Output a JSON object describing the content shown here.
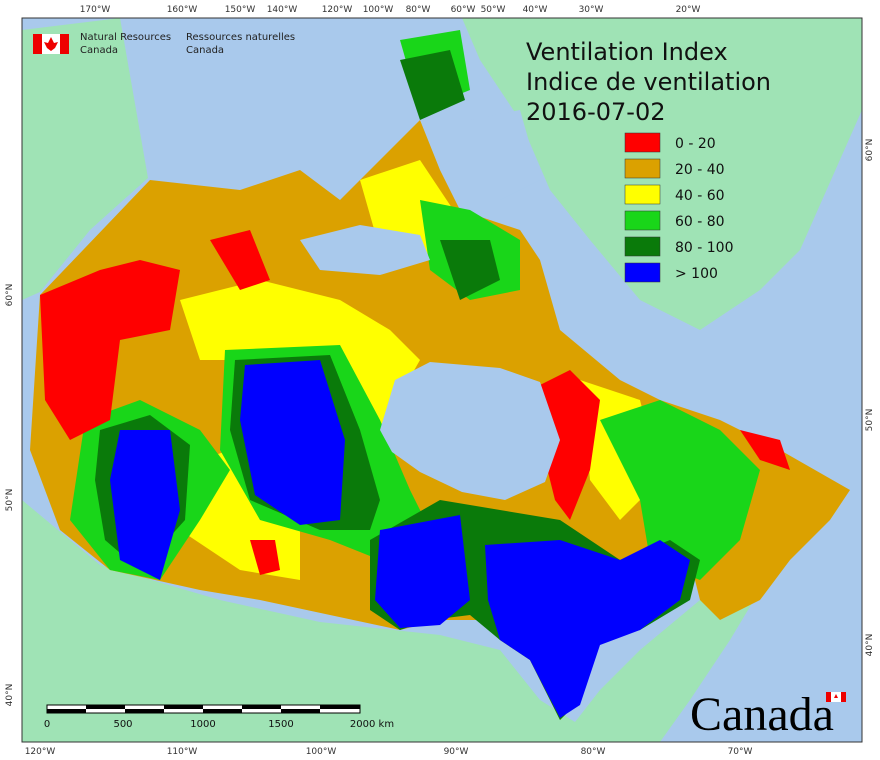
{
  "logo": {
    "english": [
      "Natural Resources",
      "Canada"
    ],
    "french": [
      "Ressources naturelles",
      "Canada"
    ]
  },
  "title": [
    "Ventilation Index",
    "Indice de ventilation"
  ],
  "date": "2016-07-02",
  "legend": [
    {
      "label": "0 - 20",
      "color": "#ff0000"
    },
    {
      "label": "20 - 40",
      "color": "#dba100"
    },
    {
      "label": "40 - 60",
      "color": "#ffff00"
    },
    {
      "label": "60 - 80",
      "color": "#19d619"
    },
    {
      "label": "80 - 100",
      "color": "#0a7a0a"
    },
    {
      "label": "> 100",
      "color": "#0000ff"
    }
  ],
  "graticule": {
    "top": [
      "170°W",
      "160°W",
      "150°W",
      "140°W",
      "120°W",
      "100°W",
      "80°W",
      "60°W",
      "50°W",
      "40°W",
      "30°W",
      "20°W"
    ],
    "bottom": [
      "120°W",
      "110°W",
      "100°W",
      "90°W",
      "80°W",
      "70°W"
    ],
    "left": [
      "60°N",
      "50°N",
      "40°N"
    ],
    "right": [
      "60°N",
      "50°N",
      "40°N"
    ]
  },
  "scale_bar": [
    "0",
    "500",
    "1000",
    "1500",
    "2000 km"
  ],
  "wordmark": "Canada"
}
